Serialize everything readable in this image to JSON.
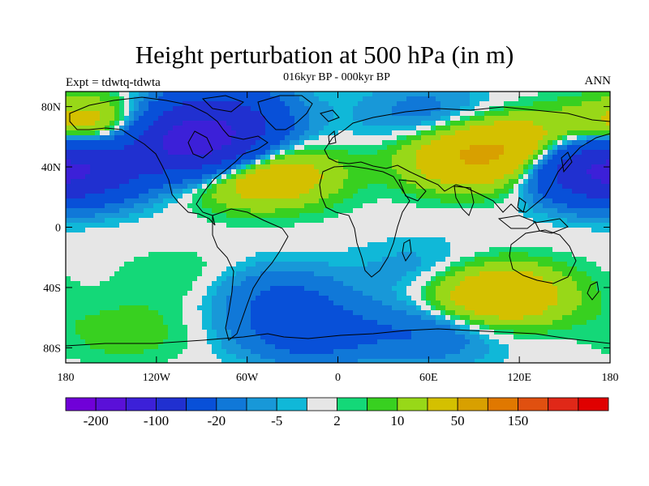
{
  "title": "Height perturbation at 500 hPa (in m)",
  "subtitle": "016kyr BP - 000kyr BP",
  "left_label": "Expt = tdwtq-tdwta",
  "right_label": "ANN",
  "map": {
    "projection": "cylindrical equidistant",
    "lon_range": [
      -180,
      180
    ],
    "lat_range": [
      -90,
      90
    ],
    "x_ticks": [
      {
        "value": -180,
        "label": "180"
      },
      {
        "value": -120,
        "label": "120W"
      },
      {
        "value": -60,
        "label": "60W"
      },
      {
        "value": 0,
        "label": "0"
      },
      {
        "value": 60,
        "label": "60E"
      },
      {
        "value": 120,
        "label": "120E"
      },
      {
        "value": 180,
        "label": "180"
      }
    ],
    "y_ticks": [
      {
        "value": 80,
        "label": "80N"
      },
      {
        "value": 40,
        "label": "40N"
      },
      {
        "value": 0,
        "label": "0"
      },
      {
        "value": -40,
        "label": "40S"
      },
      {
        "value": -80,
        "label": "80S"
      }
    ]
  },
  "colorbar": {
    "colors": [
      "#7000d8",
      "#5a10d8",
      "#3c20d8",
      "#2030d0",
      "#0850d8",
      "#1078d8",
      "#1898d8",
      "#10b8d8",
      "#e6e6e6",
      "#14d878",
      "#38d020",
      "#98d818",
      "#d4c000",
      "#d8a000",
      "#e07800",
      "#e05010",
      "#e02818",
      "#e00000"
    ],
    "labels": [
      {
        "boundary": 1,
        "text": "-200"
      },
      {
        "boundary": 3,
        "text": "-100"
      },
      {
        "boundary": 5,
        "text": "-20"
      },
      {
        "boundary": 7,
        "text": "-5"
      },
      {
        "boundary": 9,
        "text": "2"
      },
      {
        "boundary": 11,
        "text": "10"
      },
      {
        "boundary": 13,
        "text": "50"
      },
      {
        "boundary": 15,
        "text": "150"
      }
    ]
  },
  "field_features": [
    {
      "lon": -95,
      "lat": 55,
      "value": -120
    },
    {
      "lon": -80,
      "lat": 75,
      "value": -50
    },
    {
      "lon": 175,
      "lat": 38,
      "value": -60
    },
    {
      "lon": -178,
      "lat": 38,
      "value": -60
    },
    {
      "lon": -160,
      "lat": 65,
      "value": 40
    },
    {
      "lon": -50,
      "lat": 35,
      "value": 45
    },
    {
      "lon": 90,
      "lat": 45,
      "value": 40
    },
    {
      "lon": 115,
      "lat": 55,
      "value": 30
    },
    {
      "lon": 60,
      "lat": 75,
      "value": -15
    },
    {
      "lon": 105,
      "lat": -45,
      "value": 45
    },
    {
      "lon": -40,
      "lat": -45,
      "value": -20
    },
    {
      "lon": 60,
      "lat": -30,
      "value": -10
    },
    {
      "lon": -20,
      "lat": -70,
      "value": -30
    },
    {
      "lon": 60,
      "lat": -70,
      "value": -20
    },
    {
      "lon": -100,
      "lat": -35,
      "value": 6
    },
    {
      "lon": -140,
      "lat": -70,
      "value": 8
    }
  ]
}
